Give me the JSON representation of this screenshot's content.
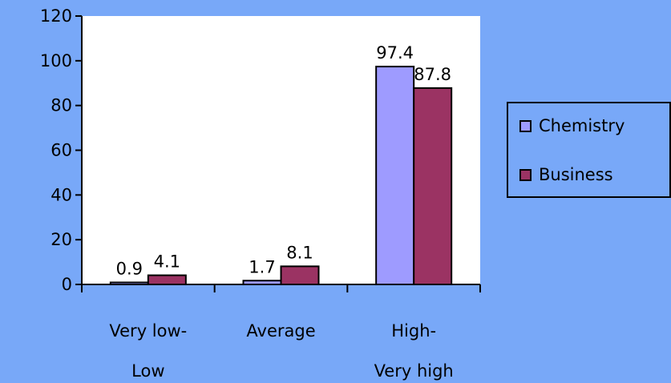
{
  "chart_data": {
    "type": "bar",
    "categories": [
      [
        "Very low-",
        "Low"
      ],
      [
        "Average"
      ],
      [
        "High-",
        "Very high"
      ]
    ],
    "series": [
      {
        "name": "Chemistry",
        "values": [
          0.9,
          1.7,
          97.4
        ],
        "color": "#9e9bff"
      },
      {
        "name": "Business",
        "values": [
          4.1,
          8.1,
          87.8
        ],
        "color": "#9b3363"
      }
    ],
    "title": "",
    "xlabel": "",
    "ylabel": "",
    "ylim": [
      0,
      120
    ],
    "yticks": [
      0,
      20,
      40,
      60,
      80,
      100,
      120
    ],
    "grid": false,
    "legend_position": "right",
    "plot_background": "#ffffff",
    "page_background": "#78a8f8"
  }
}
